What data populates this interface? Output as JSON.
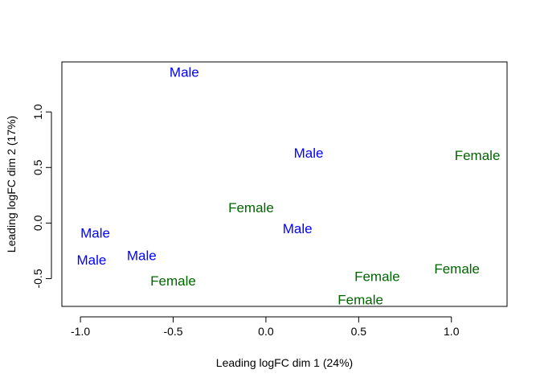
{
  "chart_data": {
    "type": "scatter",
    "marker": "text-label",
    "xlabel": "Leading logFC dim 1 (24%)",
    "ylabel": "Leading logFC dim 2 (17%)",
    "xlim": [
      -1.1,
      1.3
    ],
    "ylim": [
      -0.75,
      1.45
    ],
    "x_ticks": [
      -1.0,
      -0.5,
      0.0,
      0.5,
      1.0
    ],
    "x_tick_labels": [
      "-1.0",
      "-0.5",
      "0.0",
      "0.5",
      "1.0"
    ],
    "y_ticks": [
      -0.5,
      0.0,
      0.5,
      1.0
    ],
    "y_tick_labels": [
      "-0.5",
      "0.0",
      "0.5",
      "1.0"
    ],
    "grid": false,
    "legend": "none",
    "groups": [
      {
        "label": "Male",
        "color": "#0000FF"
      },
      {
        "label": "Female",
        "color": "#006400"
      }
    ],
    "points": [
      {
        "label": "Male",
        "x": -0.44,
        "y": 1.35
      },
      {
        "label": "Male",
        "x": 0.23,
        "y": 0.62
      },
      {
        "label": "Male",
        "x": 0.17,
        "y": -0.06
      },
      {
        "label": "Male",
        "x": -0.92,
        "y": -0.1
      },
      {
        "label": "Male",
        "x": -0.94,
        "y": -0.34
      },
      {
        "label": "Male",
        "x": -0.67,
        "y": -0.3
      },
      {
        "label": "Female",
        "x": 1.14,
        "y": 0.6
      },
      {
        "label": "Female",
        "x": -0.08,
        "y": 0.13
      },
      {
        "label": "Female",
        "x": -0.5,
        "y": -0.53
      },
      {
        "label": "Female",
        "x": 0.6,
        "y": -0.49
      },
      {
        "label": "Female",
        "x": 1.03,
        "y": -0.42
      },
      {
        "label": "Female",
        "x": 0.51,
        "y": -0.7
      }
    ]
  }
}
